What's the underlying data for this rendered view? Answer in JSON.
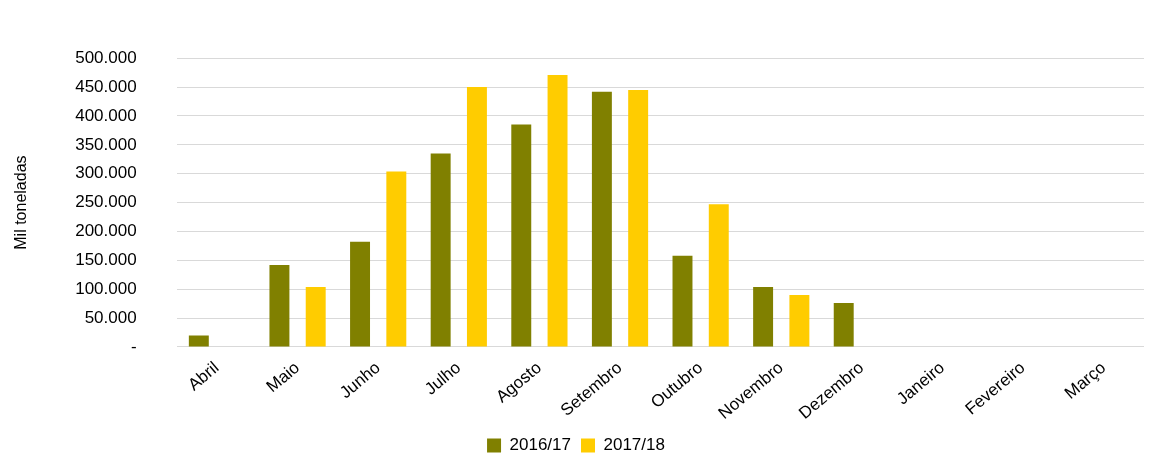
{
  "chart_data": {
    "type": "bar",
    "ylabel": "Mil toneladas",
    "categories": [
      "Abril",
      "Maio",
      "Junho",
      "Julho",
      "Agosto",
      "Setembro",
      "Outubro",
      "Novembro",
      "Dezembro",
      "Janeiro",
      "Fevereiro",
      "Março"
    ],
    "series": [
      {
        "name": "2016/17",
        "color": "#808000",
        "values": [
          20000,
          142000,
          182000,
          335000,
          385000,
          442000,
          158000,
          104000,
          76000,
          null,
          null,
          null
        ]
      },
      {
        "name": "2017/18",
        "color": "#ffcc00",
        "values": [
          null,
          104000,
          304000,
          450000,
          471000,
          445000,
          247000,
          90000,
          null,
          null,
          null,
          null
        ]
      }
    ],
    "ylim": [
      0,
      500000
    ],
    "yticks": [
      {
        "value": 0,
        "label": "-"
      },
      {
        "value": 50000,
        "label": "50.000"
      },
      {
        "value": 100000,
        "label": "100.000"
      },
      {
        "value": 150000,
        "label": "150.000"
      },
      {
        "value": 200000,
        "label": "200.000"
      },
      {
        "value": 250000,
        "label": "250.000"
      },
      {
        "value": 300000,
        "label": "300.000"
      },
      {
        "value": 350000,
        "label": "350.000"
      },
      {
        "value": 400000,
        "label": "400.000"
      },
      {
        "value": 450000,
        "label": "450.000"
      },
      {
        "value": 500000,
        "label": "500.000"
      }
    ],
    "grid": "y",
    "legend": "bottom"
  }
}
